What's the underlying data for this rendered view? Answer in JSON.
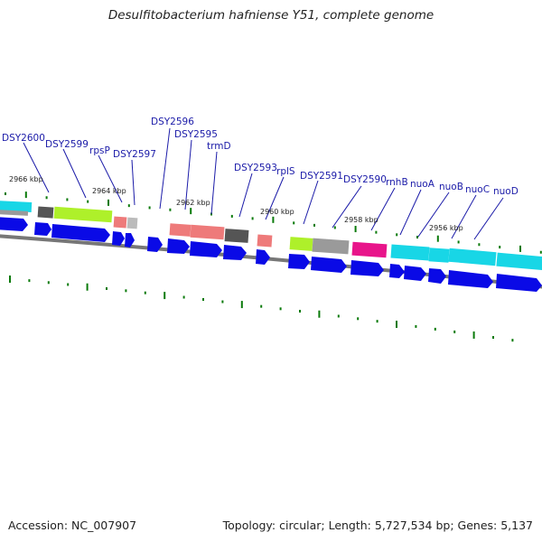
{
  "title": "Desulfitobacterium hafniense Y51, complete genome",
  "footer": {
    "accession": "Accession: NC_007907",
    "summary": "Topology: circular; Length: 5,727,534 bp; Genes: 5,137"
  },
  "kbp_labels": [
    {
      "text": "2966 kbp"
    },
    {
      "text": "2964 kbp"
    },
    {
      "text": "2962 kbp"
    },
    {
      "text": "2960 kbp"
    },
    {
      "text": "2958 kbp"
    },
    {
      "text": "2956 kbp"
    }
  ],
  "gene_labels": [
    {
      "text": "DSY2600"
    },
    {
      "text": "DSY2599"
    },
    {
      "text": "rpsP"
    },
    {
      "text": "DSY2597"
    },
    {
      "text": "DSY2596"
    },
    {
      "text": "DSY2595"
    },
    {
      "text": "trmD"
    },
    {
      "text": "DSY2593"
    },
    {
      "text": "rplS"
    },
    {
      "text": "DSY2591"
    },
    {
      "text": "DSY2590"
    },
    {
      "text": "rnhB"
    },
    {
      "text": "nuoA"
    },
    {
      "text": "nuoB"
    },
    {
      "text": "nuoC"
    },
    {
      "text": "nuoD"
    }
  ],
  "colors": {
    "gene_label": "#1a1aa8",
    "cds_arrow": "#0a0ae6",
    "backbone": "#777777",
    "tick": "#0a7a0a",
    "cyan": "#18d6e6",
    "lime": "#aef02a",
    "salmon": "#ee7a7a",
    "gray": "#9a9a9a",
    "dark_gray": "#555555",
    "magenta": "#e8148a"
  }
}
